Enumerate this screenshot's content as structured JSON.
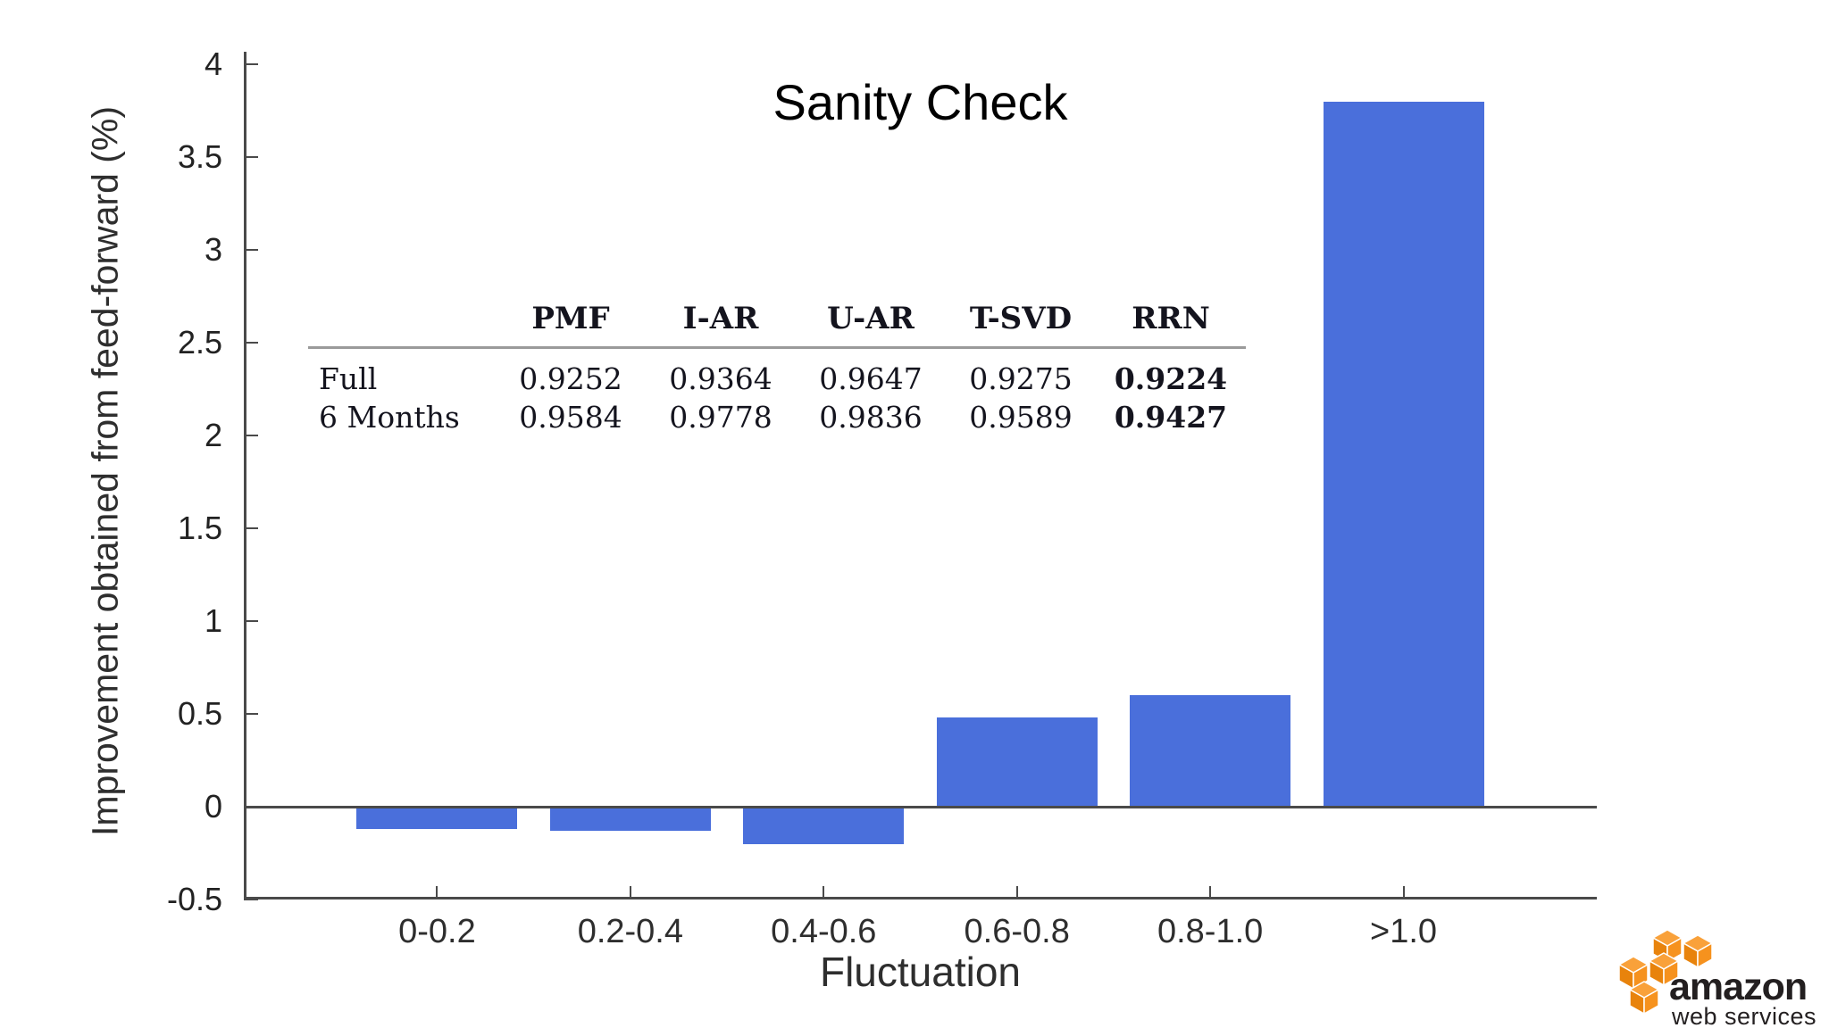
{
  "chart_data": {
    "type": "bar",
    "title": "Sanity Check",
    "categories": [
      "0-0.2",
      "0.2-0.4",
      "0.4-0.6",
      "0.6-0.8",
      "0.8-1.0",
      ">1.0"
    ],
    "values": [
      -0.12,
      -0.13,
      -0.2,
      0.48,
      0.6,
      3.8
    ],
    "xlabel": "Fluctuation",
    "ylabel": "Improvement obtained from feed-forward (%)",
    "ylim": [
      -0.5,
      4
    ],
    "ytick_step": 0.5,
    "yticks": [
      4,
      3.5,
      3,
      2.5,
      2,
      1.5,
      1,
      0.5,
      0,
      -0.5
    ],
    "grid": false,
    "legend": "none",
    "bar_color": "#4a6fdb",
    "axis_color": "#4a4a4a"
  },
  "table": {
    "columns": [
      "",
      "PMF",
      "I-AR",
      "U-AR",
      "T-SVD",
      "RRN"
    ],
    "rows": [
      {
        "label": "Full",
        "values": [
          "0.9252",
          "0.9364",
          "0.9647",
          "0.9275",
          "0.9224"
        ]
      },
      {
        "label": "6 Months",
        "values": [
          "0.9584",
          "0.9778",
          "0.9836",
          "0.9589",
          "0.9427"
        ]
      }
    ],
    "bold_column": "RRN"
  },
  "logo": {
    "brand": "amazon",
    "subtitle": "web services",
    "orange": "#f6921e",
    "orange_light": "#f9a13a",
    "orange_dark": "#e8830c",
    "text_color": "#231f20"
  }
}
